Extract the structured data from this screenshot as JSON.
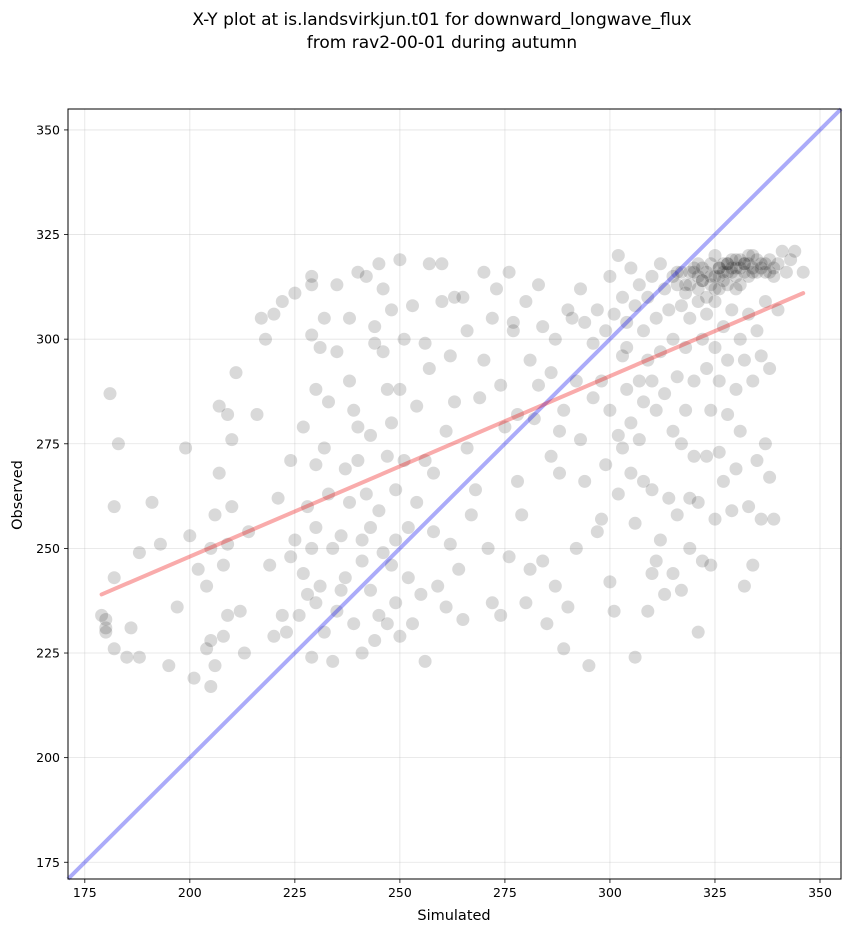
{
  "chart_data": {
    "type": "scatter",
    "title_lines": [
      "X-Y plot at is.landsvirkjun.t01 for downward_longwave_flux",
      "from rav2-00-01 during autumn"
    ],
    "xlabel": "Simulated",
    "ylabel": "Observed",
    "xlim": [
      171,
      355
    ],
    "ylim": [
      171,
      355
    ],
    "xticks": [
      175,
      200,
      225,
      250,
      275,
      300,
      325,
      350
    ],
    "yticks": [
      175,
      200,
      225,
      250,
      275,
      300,
      325,
      350
    ],
    "grid": true,
    "colors": {
      "points": "#000000",
      "points_opacity": 0.15,
      "identity_line": "#0000ee",
      "identity_opacity": 0.33,
      "fit_line": "#ee0000",
      "fit_opacity": 0.33
    },
    "identity_line": {
      "from": [
        171,
        171
      ],
      "to": [
        355,
        355
      ]
    },
    "fit_line": {
      "from": [
        179,
        239
      ],
      "to": [
        346,
        311
      ]
    },
    "points": [
      [
        179,
        234
      ],
      [
        180,
        233
      ],
      [
        180,
        231
      ],
      [
        180,
        230
      ],
      [
        181,
        287
      ],
      [
        182,
        243
      ],
      [
        182,
        226
      ],
      [
        183,
        275
      ],
      [
        182,
        260
      ],
      [
        185,
        224
      ],
      [
        186,
        231
      ],
      [
        188,
        249
      ],
      [
        188,
        224
      ],
      [
        191,
        261
      ],
      [
        193,
        251
      ],
      [
        195,
        222
      ],
      [
        197,
        236
      ],
      [
        199,
        274
      ],
      [
        200,
        253
      ],
      [
        201,
        219
      ],
      [
        202,
        245
      ],
      [
        204,
        241
      ],
      [
        204,
        226
      ],
      [
        205,
        228
      ],
      [
        205,
        217
      ],
      [
        205,
        250
      ],
      [
        206,
        258
      ],
      [
        206,
        222
      ],
      [
        207,
        284
      ],
      [
        207,
        268
      ],
      [
        208,
        229
      ],
      [
        208,
        246
      ],
      [
        209,
        251
      ],
      [
        209,
        282
      ],
      [
        209,
        234
      ],
      [
        210,
        276
      ],
      [
        210,
        260
      ],
      [
        211,
        292
      ],
      [
        212,
        235
      ],
      [
        213,
        225
      ],
      [
        214,
        254
      ],
      [
        216,
        282
      ],
      [
        217,
        305
      ],
      [
        218,
        300
      ],
      [
        219,
        246
      ],
      [
        220,
        229
      ],
      [
        220,
        306
      ],
      [
        221,
        262
      ],
      [
        222,
        309
      ],
      [
        222,
        234
      ],
      [
        223,
        230
      ],
      [
        224,
        271
      ],
      [
        224,
        248
      ],
      [
        225,
        311
      ],
      [
        225,
        252
      ],
      [
        226,
        234
      ],
      [
        227,
        244
      ],
      [
        227,
        279
      ],
      [
        228,
        260
      ],
      [
        228,
        239
      ],
      [
        229,
        224
      ],
      [
        229,
        301
      ],
      [
        229,
        250
      ],
      [
        229,
        313
      ],
      [
        229,
        315
      ],
      [
        230,
        237
      ],
      [
        230,
        255
      ],
      [
        230,
        270
      ],
      [
        230,
        288
      ],
      [
        231,
        241
      ],
      [
        231,
        298
      ],
      [
        232,
        274
      ],
      [
        232,
        305
      ],
      [
        232,
        230
      ],
      [
        233,
        263
      ],
      [
        233,
        285
      ],
      [
        234,
        223
      ],
      [
        234,
        250
      ],
      [
        235,
        313
      ],
      [
        235,
        297
      ],
      [
        235,
        235
      ],
      [
        236,
        253
      ],
      [
        236,
        240
      ],
      [
        237,
        269
      ],
      [
        237,
        243
      ],
      [
        238,
        261
      ],
      [
        238,
        305
      ],
      [
        238,
        290
      ],
      [
        239,
        283
      ],
      [
        239,
        232
      ],
      [
        240,
        279
      ],
      [
        240,
        271
      ],
      [
        240,
        316
      ],
      [
        241,
        225
      ],
      [
        241,
        247
      ],
      [
        241,
        252
      ],
      [
        242,
        315
      ],
      [
        242,
        263
      ],
      [
        243,
        277
      ],
      [
        243,
        255
      ],
      [
        243,
        240
      ],
      [
        244,
        303
      ],
      [
        244,
        228
      ],
      [
        244,
        299
      ],
      [
        245,
        234
      ],
      [
        245,
        318
      ],
      [
        245,
        259
      ],
      [
        246,
        312
      ],
      [
        246,
        297
      ],
      [
        246,
        249
      ],
      [
        247,
        272
      ],
      [
        247,
        288
      ],
      [
        247,
        232
      ],
      [
        248,
        246
      ],
      [
        248,
        280
      ],
      [
        248,
        307
      ],
      [
        249,
        264
      ],
      [
        249,
        237
      ],
      [
        249,
        252
      ],
      [
        250,
        319
      ],
      [
        250,
        288
      ],
      [
        250,
        229
      ],
      [
        251,
        271
      ],
      [
        251,
        300
      ],
      [
        252,
        243
      ],
      [
        252,
        255
      ],
      [
        253,
        232
      ],
      [
        253,
        308
      ],
      [
        254,
        261
      ],
      [
        254,
        284
      ],
      [
        255,
        239
      ],
      [
        256,
        271
      ],
      [
        256,
        299
      ],
      [
        256,
        223
      ],
      [
        257,
        318
      ],
      [
        257,
        293
      ],
      [
        258,
        268
      ],
      [
        258,
        254
      ],
      [
        259,
        241
      ],
      [
        260,
        318
      ],
      [
        260,
        309
      ],
      [
        261,
        278
      ],
      [
        261,
        236
      ],
      [
        262,
        296
      ],
      [
        262,
        251
      ],
      [
        263,
        310
      ],
      [
        263,
        285
      ],
      [
        264,
        245
      ],
      [
        265,
        310
      ],
      [
        265,
        233
      ],
      [
        266,
        302
      ],
      [
        266,
        274
      ],
      [
        267,
        258
      ],
      [
        268,
        264
      ],
      [
        269,
        286
      ],
      [
        270,
        316
      ],
      [
        270,
        295
      ],
      [
        271,
        250
      ],
      [
        272,
        305
      ],
      [
        272,
        237
      ],
      [
        273,
        312
      ],
      [
        274,
        289
      ],
      [
        274,
        234
      ],
      [
        275,
        279
      ],
      [
        276,
        316
      ],
      [
        276,
        248
      ],
      [
        277,
        304
      ],
      [
        277,
        302
      ],
      [
        278,
        282
      ],
      [
        278,
        266
      ],
      [
        279,
        258
      ],
      [
        280,
        309
      ],
      [
        280,
        237
      ],
      [
        281,
        295
      ],
      [
        281,
        245
      ],
      [
        282,
        281
      ],
      [
        283,
        313
      ],
      [
        283,
        289
      ],
      [
        284,
        303
      ],
      [
        284,
        247
      ],
      [
        285,
        232
      ],
      [
        286,
        292
      ],
      [
        286,
        272
      ],
      [
        287,
        300
      ],
      [
        287,
        241
      ],
      [
        288,
        278
      ],
      [
        288,
        268
      ],
      [
        289,
        283
      ],
      [
        289,
        226
      ],
      [
        290,
        307
      ],
      [
        290,
        236
      ],
      [
        291,
        305
      ],
      [
        292,
        290
      ],
      [
        292,
        250
      ],
      [
        293,
        276
      ],
      [
        293,
        312
      ],
      [
        294,
        266
      ],
      [
        294,
        304
      ],
      [
        295,
        222
      ],
      [
        296,
        299
      ],
      [
        296,
        286
      ],
      [
        297,
        307
      ],
      [
        297,
        254
      ],
      [
        298,
        257
      ],
      [
        298,
        290
      ],
      [
        299,
        302
      ],
      [
        299,
        270
      ],
      [
        300,
        315
      ],
      [
        300,
        283
      ],
      [
        300,
        242
      ],
      [
        301,
        306
      ],
      [
        301,
        235
      ],
      [
        302,
        320
      ],
      [
        302,
        277
      ],
      [
        302,
        263
      ],
      [
        303,
        310
      ],
      [
        303,
        296
      ],
      [
        303,
        274
      ],
      [
        304,
        298
      ],
      [
        304,
        288
      ],
      [
        304,
        304
      ],
      [
        305,
        268
      ],
      [
        305,
        317
      ],
      [
        305,
        280
      ],
      [
        306,
        308
      ],
      [
        306,
        224
      ],
      [
        306,
        256
      ],
      [
        307,
        290
      ],
      [
        307,
        313
      ],
      [
        307,
        276
      ],
      [
        308,
        302
      ],
      [
        308,
        285
      ],
      [
        308,
        266
      ],
      [
        309,
        310
      ],
      [
        309,
        295
      ],
      [
        309,
        235
      ],
      [
        310,
        315
      ],
      [
        310,
        290
      ],
      [
        310,
        244
      ],
      [
        310,
        264
      ],
      [
        311,
        305
      ],
      [
        311,
        283
      ],
      [
        311,
        247
      ],
      [
        312,
        318
      ],
      [
        312,
        297
      ],
      [
        312,
        252
      ],
      [
        313,
        312
      ],
      [
        313,
        287
      ],
      [
        313,
        239
      ],
      [
        314,
        307
      ],
      [
        314,
        262
      ],
      [
        315,
        300
      ],
      [
        315,
        278
      ],
      [
        315,
        244
      ],
      [
        316,
        316
      ],
      [
        316,
        291
      ],
      [
        316,
        258
      ],
      [
        317,
        308
      ],
      [
        317,
        275
      ],
      [
        317,
        240
      ],
      [
        318,
        313
      ],
      [
        318,
        298
      ],
      [
        318,
        283
      ],
      [
        319,
        305
      ],
      [
        319,
        262
      ],
      [
        319,
        250
      ],
      [
        320,
        317
      ],
      [
        320,
        290
      ],
      [
        320,
        272
      ],
      [
        321,
        309
      ],
      [
        321,
        230
      ],
      [
        321,
        261
      ],
      [
        322,
        300
      ],
      [
        322,
        247
      ],
      [
        322,
        314
      ],
      [
        323,
        306
      ],
      [
        323,
        272
      ],
      [
        323,
        293
      ],
      [
        324,
        315
      ],
      [
        324,
        246
      ],
      [
        324,
        283
      ],
      [
        325,
        312
      ],
      [
        325,
        298
      ],
      [
        325,
        257
      ],
      [
        326,
        317
      ],
      [
        326,
        290
      ],
      [
        326,
        273
      ],
      [
        327,
        314
      ],
      [
        327,
        303
      ],
      [
        327,
        266
      ],
      [
        328,
        318
      ],
      [
        328,
        295
      ],
      [
        328,
        282
      ],
      [
        329,
        316
      ],
      [
        329,
        307
      ],
      [
        329,
        259
      ],
      [
        330,
        319
      ],
      [
        330,
        288
      ],
      [
        330,
        269
      ],
      [
        331,
        313
      ],
      [
        331,
        300
      ],
      [
        331,
        278
      ],
      [
        332,
        318
      ],
      [
        332,
        295
      ],
      [
        332,
        241
      ],
      [
        333,
        315
      ],
      [
        333,
        306
      ],
      [
        333,
        260
      ],
      [
        334,
        320
      ],
      [
        334,
        290
      ],
      [
        334,
        246
      ],
      [
        335,
        316
      ],
      [
        335,
        302
      ],
      [
        335,
        271
      ],
      [
        336,
        318
      ],
      [
        336,
        296
      ],
      [
        336,
        257
      ],
      [
        337,
        316
      ],
      [
        337,
        309
      ],
      [
        337,
        275
      ],
      [
        338,
        319
      ],
      [
        338,
        293
      ],
      [
        338,
        267
      ],
      [
        339,
        315
      ],
      [
        339,
        257
      ],
      [
        340,
        318
      ],
      [
        340,
        307
      ],
      [
        341,
        321
      ],
      [
        342,
        316
      ],
      [
        343,
        319
      ],
      [
        344,
        321
      ],
      [
        346,
        316
      ],
      [
        320,
        316
      ],
      [
        321,
        315
      ],
      [
        322,
        317
      ],
      [
        323,
        316
      ],
      [
        324,
        318
      ],
      [
        325,
        315
      ],
      [
        326,
        317
      ],
      [
        327,
        316
      ],
      [
        328,
        318
      ],
      [
        329,
        317
      ],
      [
        330,
        315
      ],
      [
        331,
        317
      ],
      [
        332,
        316
      ],
      [
        333,
        318
      ],
      [
        334,
        317
      ],
      [
        335,
        319
      ],
      [
        336,
        317
      ],
      [
        337,
        318
      ],
      [
        338,
        316
      ],
      [
        339,
        317
      ],
      [
        326,
        315
      ],
      [
        328,
        316
      ],
      [
        330,
        317
      ],
      [
        332,
        318
      ],
      [
        334,
        316
      ],
      [
        327,
        318
      ],
      [
        329,
        319
      ],
      [
        331,
        319
      ],
      [
        333,
        320
      ],
      [
        325,
        320
      ],
      [
        322,
        314
      ],
      [
        324,
        313
      ],
      [
        326,
        312
      ],
      [
        328,
        313
      ],
      [
        330,
        312
      ],
      [
        318,
        311
      ],
      [
        319,
        313
      ],
      [
        321,
        312
      ],
      [
        323,
        310
      ],
      [
        325,
        309
      ],
      [
        315,
        315
      ],
      [
        316,
        313
      ],
      [
        317,
        316
      ],
      [
        319,
        316
      ],
      [
        321,
        318
      ]
    ]
  }
}
